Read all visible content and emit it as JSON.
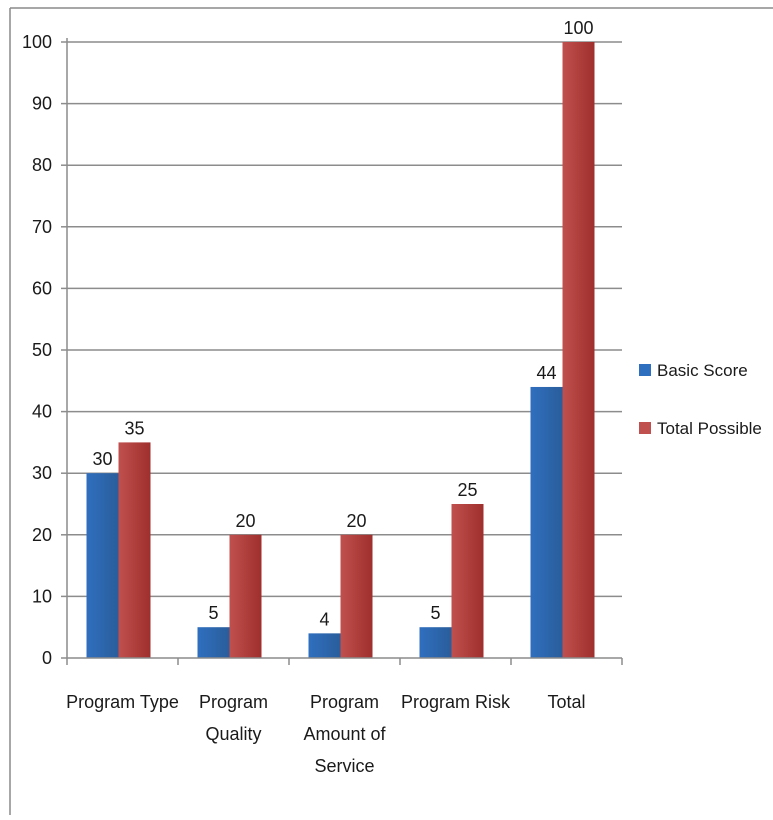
{
  "chart_data": {
    "type": "bar",
    "categories": [
      [
        "Program Type"
      ],
      [
        "Program",
        "Quality"
      ],
      [
        "Program",
        "Amount of",
        "Service"
      ],
      [
        "Program Risk"
      ],
      [
        "Total"
      ]
    ],
    "series": [
      {
        "name": "Basic Score",
        "values": [
          30,
          5,
          4,
          5,
          44
        ],
        "color": "#2f6fbf",
        "color_dark": "#2a5d9b"
      },
      {
        "name": "Total Possible",
        "values": [
          35,
          20,
          20,
          25,
          100
        ],
        "color": "#c0504d",
        "color_dark": "#9f2f2c"
      }
    ],
    "ylim": [
      0,
      100
    ],
    "yticks": [
      0,
      10,
      20,
      30,
      40,
      50,
      60,
      70,
      80,
      90,
      100
    ],
    "grid": true,
    "data_labels": true,
    "legend": "right"
  }
}
